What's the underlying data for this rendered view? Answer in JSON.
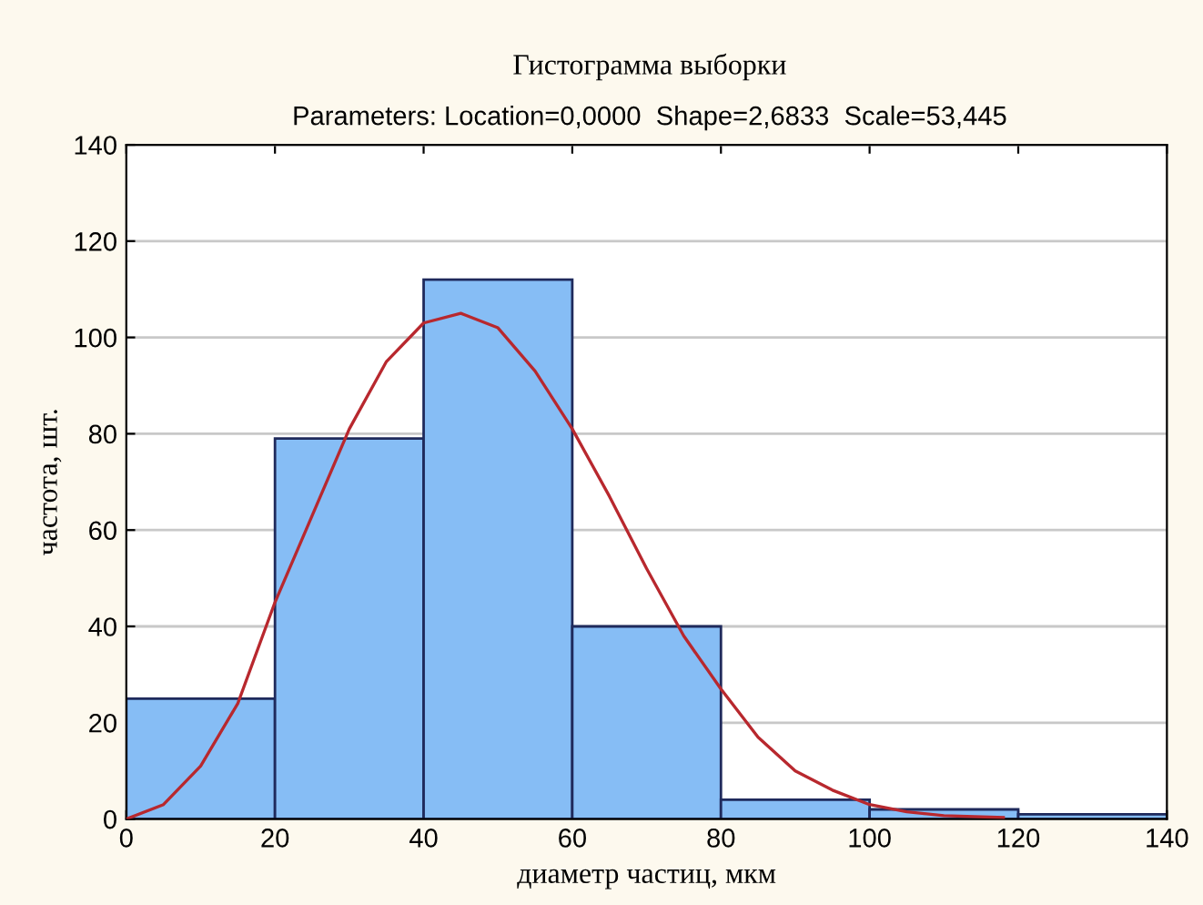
{
  "chart_data": {
    "type": "histogram",
    "title": "Гистограмма выборки",
    "subtitle": "Parameters: Location=0,0000  Shape=2,6833  Scale=53,445",
    "xlabel": "диаметр частиц, мкм",
    "ylabel": "частота, шт.",
    "bins": [
      0,
      20,
      40,
      60,
      80,
      100,
      120,
      140
    ],
    "values": [
      25,
      79,
      112,
      40,
      4,
      2,
      1
    ],
    "color": "#86bdf5",
    "series": [
      {
        "type": "line",
        "color": "#b8282e",
        "x": [
          0,
          5,
          10,
          15,
          20,
          25,
          30,
          35,
          40,
          45,
          50,
          55,
          60,
          65,
          70,
          75,
          80,
          85,
          90,
          95,
          100,
          105,
          110,
          118
        ],
        "values": [
          0,
          3,
          11,
          24,
          45,
          63,
          81,
          95,
          103,
          105,
          102,
          93,
          81,
          67,
          52,
          38,
          27,
          17,
          10,
          6,
          3,
          1.5,
          0.7,
          0.3
        ]
      }
    ],
    "xlim": [
      0,
      140
    ],
    "ylim": [
      0,
      140
    ],
    "xticks": [
      0,
      20,
      40,
      60,
      80,
      100,
      120,
      140
    ],
    "yticks": [
      0,
      20,
      40,
      60,
      80,
      100,
      120,
      140
    ],
    "grid": "y"
  }
}
